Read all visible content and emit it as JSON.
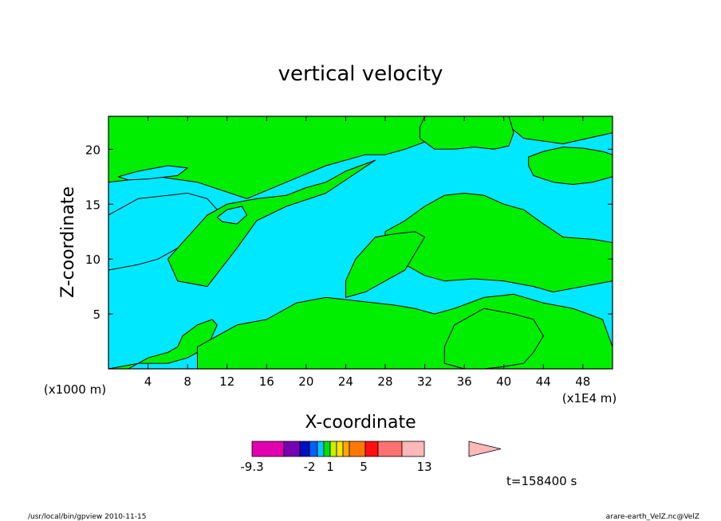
{
  "chart_data": {
    "type": "heatmap",
    "title": "vertical velocity",
    "xlabel": "X-coordinate",
    "ylabel": "Z-coordinate",
    "x_unit_left": "(x1000 m)",
    "x_unit_right": "(x1E4 m)",
    "xlim": [
      0,
      51
    ],
    "ylim": [
      0,
      23
    ],
    "x_ticks": [
      4,
      8,
      12,
      16,
      20,
      24,
      28,
      32,
      36,
      40,
      44,
      48
    ],
    "y_ticks": [
      5,
      10,
      15,
      20
    ],
    "colors": {
      "negative_region": "#00e8ff",
      "positive_region": "#00ee00",
      "contour_line": "#000000"
    },
    "colorbar": {
      "colors": [
        "#e100b0",
        "#7800b4",
        "#0010c0",
        "#0060ff",
        "#00c8ff",
        "#00e000",
        "#c8f000",
        "#ffe400",
        "#ffa800",
        "#ff7800",
        "#ff1010",
        "#ff7070",
        "#ffb8b8"
      ],
      "tick_labels": [
        "-9.3",
        "-2",
        "1",
        "5",
        "13"
      ]
    },
    "time_label": "t=158400 s",
    "footer_left": "/usr/local/bin/gpview   2010-11-15",
    "footer_right": "arare-earth_VelZ.nc@VelZ",
    "regions_positive": [
      {
        "x": [
          0,
          51,
          51,
          46,
          42,
          40,
          36,
          33,
          30,
          28,
          26,
          22,
          18,
          14,
          9,
          5,
          0
        ],
        "z": [
          23,
          23,
          21.5,
          20.5,
          21,
          22.5,
          23,
          21,
          20,
          19.5,
          19.5,
          18.5,
          17,
          15.5,
          17,
          17.5,
          17
        ]
      },
      {
        "x": [
          7,
          9,
          12,
          15,
          18,
          20,
          22,
          24,
          27,
          22,
          18,
          15,
          13,
          10,
          7,
          6
        ],
        "z": [
          11,
          13.5,
          15,
          15.5,
          15.8,
          16.5,
          17,
          18,
          19,
          16,
          14.8,
          13.5,
          11,
          7.5,
          8,
          10
        ]
      },
      {
        "x": [
          0,
          2,
          4,
          6,
          7,
          7.5,
          9,
          10.5,
          11,
          10,
          8,
          6,
          3,
          0
        ],
        "z": [
          0,
          0,
          1,
          1.5,
          2,
          3,
          4,
          4.5,
          4,
          2,
          1,
          0.5,
          0.5,
          0
        ]
      },
      {
        "x": [
          9,
          14,
          18,
          22,
          25,
          28,
          32,
          35,
          40,
          42,
          44,
          47,
          49,
          51,
          51,
          50,
          47,
          44,
          41,
          38,
          35,
          33,
          31,
          29,
          27,
          25,
          22,
          19,
          16,
          13,
          11,
          9
        ],
        "z": [
          0,
          0,
          0,
          0,
          0,
          0,
          0,
          0,
          0,
          0,
          0,
          0,
          0,
          0,
          2,
          4.5,
          5.5,
          6,
          6.8,
          6.5,
          5.5,
          5,
          5.5,
          5.8,
          6,
          6.2,
          6.5,
          6,
          4.5,
          4,
          3,
          2
        ]
      },
      {
        "x": [
          28,
          30,
          32,
          34,
          36,
          38,
          40,
          42,
          44,
          46,
          49,
          51,
          51,
          48,
          45,
          43,
          40,
          37,
          34,
          32,
          30,
          28
        ],
        "z": [
          12.5,
          13.5,
          14.8,
          15.8,
          16,
          15.8,
          15,
          14.5,
          13.2,
          12,
          11.8,
          11.5,
          8,
          7.5,
          7,
          7.5,
          8,
          8.2,
          8,
          8.5,
          9.5,
          11
        ]
      },
      {
        "x": [
          24,
          26,
          28,
          30,
          31,
          32,
          31,
          29,
          27,
          25,
          24
        ],
        "z": [
          6.5,
          7,
          8,
          9,
          10.5,
          12,
          12.5,
          12.3,
          12,
          10,
          8
        ]
      },
      {
        "x": [
          34,
          36,
          38,
          40,
          42,
          43,
          44,
          43,
          41,
          38,
          35,
          34
        ],
        "z": [
          0.5,
          0,
          0,
          0.2,
          0.5,
          1.5,
          3,
          4.5,
          5,
          5.5,
          4,
          2
        ]
      },
      {
        "x": [
          42.5,
          44,
          46,
          48,
          50,
          51,
          51,
          49,
          47,
          45,
          43,
          42.5
        ],
        "z": [
          19.3,
          19.8,
          20.2,
          20.1,
          19.8,
          19.5,
          17.5,
          17,
          16.8,
          17,
          17.6,
          18.5
        ]
      },
      {
        "x": [
          31.5,
          33,
          35,
          37,
          39,
          40.5,
          41,
          40.5,
          38,
          35,
          32,
          31.5
        ],
        "z": [
          21,
          20,
          20,
          20.2,
          20,
          20.3,
          21.5,
          23,
          23,
          23,
          23,
          22
        ]
      }
    ],
    "regions_negative": [
      {
        "x": [
          0,
          3,
          5,
          7,
          9,
          10,
          11,
          10,
          8,
          6,
          3,
          0
        ],
        "z": [
          9,
          9.5,
          10,
          11,
          13,
          14,
          14.5,
          15.5,
          16,
          15.8,
          15.5,
          14
        ]
      },
      {
        "x": [
          11,
          12,
          13.5,
          14,
          13,
          11.5,
          11
        ],
        "z": [
          13.8,
          14.5,
          14.8,
          14,
          13.2,
          13.4,
          13.8
        ]
      },
      {
        "x": [
          1,
          3,
          6,
          8,
          7,
          4,
          2,
          1
        ],
        "z": [
          17.5,
          18,
          18.5,
          18.3,
          17.6,
          17.3,
          17.2,
          17.5
        ]
      }
    ]
  }
}
